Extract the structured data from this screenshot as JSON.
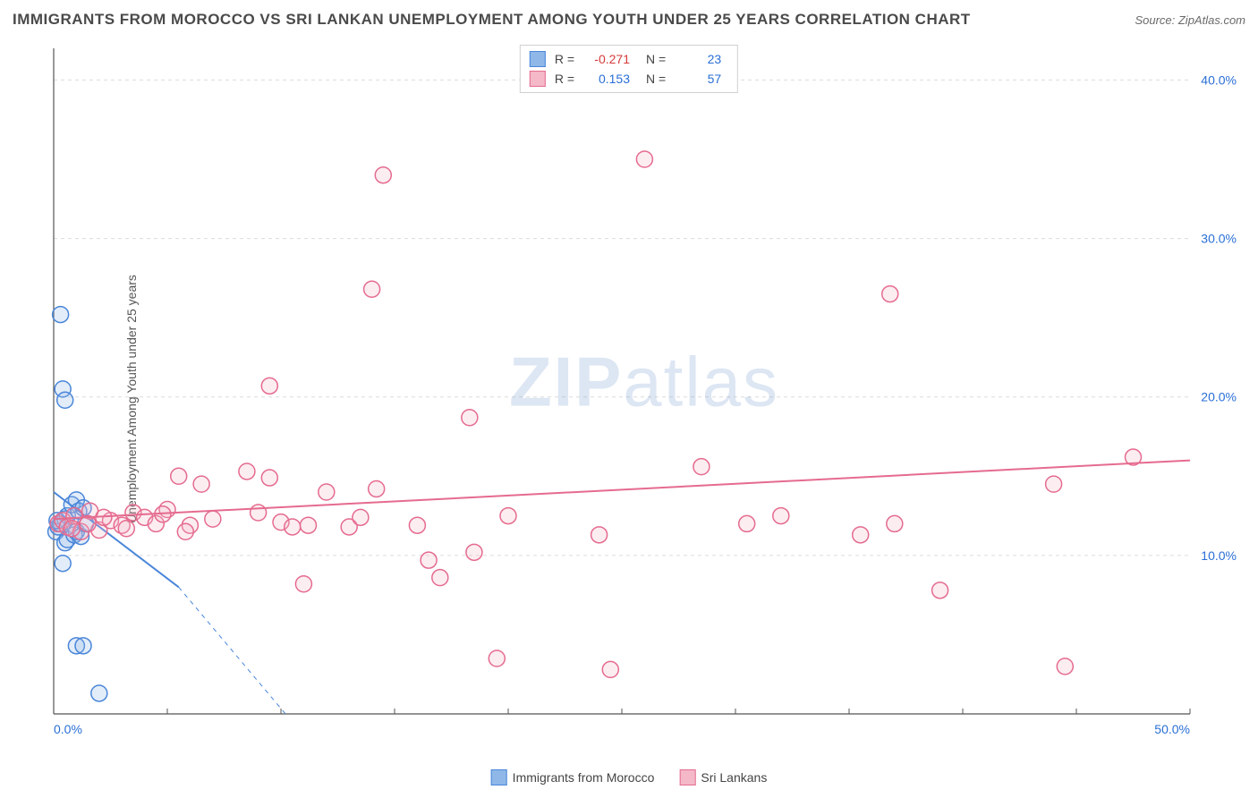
{
  "title": "IMMIGRANTS FROM MOROCCO VS SRI LANKAN UNEMPLOYMENT AMONG YOUTH UNDER 25 YEARS CORRELATION CHART",
  "source": "Source: ZipAtlas.com",
  "watermark_a": "ZIP",
  "watermark_b": "atlas",
  "y_label": "Unemployment Among Youth under 25 years",
  "chart": {
    "type": "scatter",
    "background_color": "#ffffff",
    "grid_color": "#dcdcdc",
    "grid_dash": "4,4",
    "axis_color": "#555555",
    "tick_label_color": "#2a6fd6",
    "xlim": [
      0,
      50
    ],
    "ylim": [
      0,
      42
    ],
    "x_ticks": [
      0,
      50
    ],
    "x_tick_labels": [
      "0.0%",
      "50.0%"
    ],
    "y_ticks": [
      10,
      20,
      30,
      40
    ],
    "y_tick_labels": [
      "10.0%",
      "20.0%",
      "30.0%",
      "40.0%"
    ],
    "marker_radius": 9,
    "marker_stroke_width": 1.5,
    "marker_fill_opacity": 0.25,
    "trend_line_width": 2,
    "series": [
      {
        "id": "morocco",
        "label": "Immigrants from Morocco",
        "color_fill": "#8fb8e8",
        "color_stroke": "#4a86d9",
        "R": "-0.271",
        "N": "23",
        "trend": {
          "x1": 0,
          "y1": 14.0,
          "x2": 5.5,
          "y2": 8.0,
          "dash_x2": 10.2,
          "dash_y2": 0
        },
        "points": [
          [
            0.3,
            25.2
          ],
          [
            0.4,
            20.5
          ],
          [
            0.5,
            19.8
          ],
          [
            1.0,
            4.3
          ],
          [
            1.3,
            4.3
          ],
          [
            0.4,
            9.5
          ],
          [
            0.1,
            11.5
          ],
          [
            0.2,
            11.8
          ],
          [
            0.3,
            12.0
          ],
          [
            0.5,
            12.3
          ],
          [
            0.6,
            12.5
          ],
          [
            0.8,
            13.2
          ],
          [
            1.0,
            13.5
          ],
          [
            1.1,
            12.8
          ],
          [
            1.3,
            13.0
          ],
          [
            0.5,
            10.8
          ],
          [
            0.6,
            11.0
          ],
          [
            0.9,
            11.3
          ],
          [
            1.0,
            11.5
          ],
          [
            1.2,
            11.2
          ],
          [
            1.4,
            12.0
          ],
          [
            0.15,
            12.2
          ],
          [
            2.0,
            1.3
          ]
        ]
      },
      {
        "id": "srilankan",
        "label": "Sri Lankans",
        "color_fill": "#f4b8c8",
        "color_stroke": "#e56b8f",
        "R": "0.153",
        "N": "57",
        "trend": {
          "x1": 0,
          "y1": 12.3,
          "x2": 50,
          "y2": 16.0
        },
        "points": [
          [
            0.2,
            12.0
          ],
          [
            0.4,
            12.2
          ],
          [
            0.6,
            11.8
          ],
          [
            0.9,
            12.5
          ],
          [
            1.2,
            11.5
          ],
          [
            1.6,
            12.8
          ],
          [
            2.0,
            11.6
          ],
          [
            2.5,
            12.2
          ],
          [
            3.0,
            11.9
          ],
          [
            3.5,
            12.7
          ],
          [
            4.0,
            12.4
          ],
          [
            4.5,
            12.0
          ],
          [
            5.0,
            12.9
          ],
          [
            5.5,
            15.0
          ],
          [
            6.0,
            11.9
          ],
          [
            6.5,
            14.5
          ],
          [
            7.0,
            12.3
          ],
          [
            8.5,
            15.3
          ],
          [
            9.0,
            12.7
          ],
          [
            9.5,
            14.9
          ],
          [
            9.5,
            20.7
          ],
          [
            10.0,
            12.1
          ],
          [
            10.5,
            11.8
          ],
          [
            11.0,
            8.2
          ],
          [
            11.2,
            11.9
          ],
          [
            12.0,
            14.0
          ],
          [
            13.0,
            11.8
          ],
          [
            13.5,
            12.4
          ],
          [
            14.0,
            26.8
          ],
          [
            14.2,
            14.2
          ],
          [
            14.5,
            34.0
          ],
          [
            16.0,
            11.9
          ],
          [
            16.5,
            9.7
          ],
          [
            17.0,
            8.6
          ],
          [
            18.3,
            18.7
          ],
          [
            18.5,
            10.2
          ],
          [
            20.0,
            12.5
          ],
          [
            19.5,
            3.5
          ],
          [
            24.0,
            11.3
          ],
          [
            24.5,
            2.8
          ],
          [
            26.0,
            35.0
          ],
          [
            28.5,
            15.6
          ],
          [
            30.5,
            12.0
          ],
          [
            32.0,
            12.5
          ],
          [
            35.5,
            11.3
          ],
          [
            37.0,
            12.0
          ],
          [
            36.8,
            26.5
          ],
          [
            39.0,
            7.8
          ],
          [
            44.0,
            14.5
          ],
          [
            44.5,
            3.0
          ],
          [
            47.5,
            16.2
          ],
          [
            0.8,
            11.7
          ],
          [
            1.5,
            12.0
          ],
          [
            2.2,
            12.4
          ],
          [
            3.2,
            11.7
          ],
          [
            4.8,
            12.6
          ],
          [
            5.8,
            11.5
          ]
        ]
      }
    ]
  },
  "legend_stats_label_R": "R =",
  "legend_stats_label_N": "N ="
}
